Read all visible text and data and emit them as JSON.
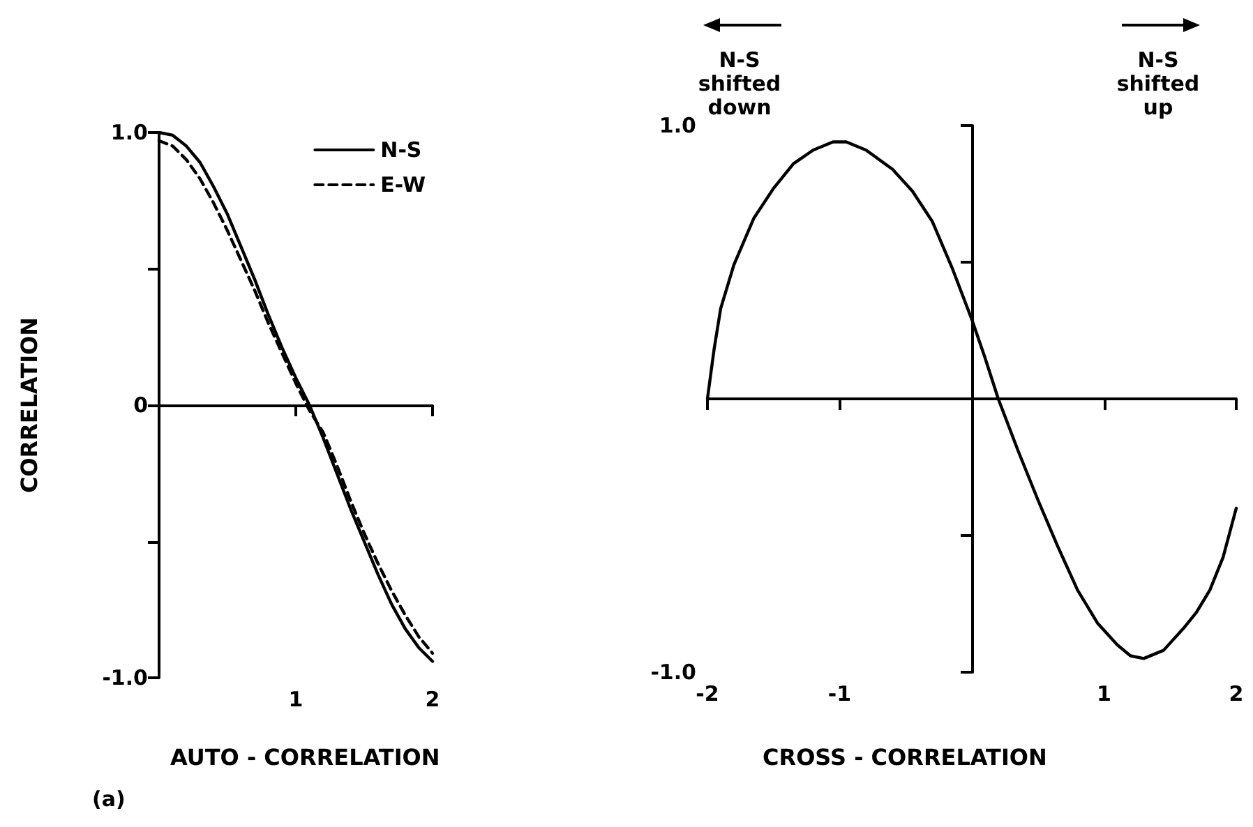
{
  "chart_data": [
    {
      "type": "line",
      "xlabel": "AUTO - CORRELATION",
      "ylabel": "CORRELATION",
      "annotations": [
        "(a)"
      ],
      "legend": "top right",
      "marker": "none",
      "xlim": [
        0,
        2
      ],
      "xticks": [
        1,
        2
      ],
      "ylim": [
        -1,
        1
      ],
      "yticks": [
        {
          "value": -1,
          "label": "-1.0"
        },
        {
          "value": -0.5,
          "label": null
        },
        0,
        {
          "value": 0.5,
          "label": null
        },
        {
          "value": 1,
          "label": "1.0"
        }
      ],
      "x": [
        0,
        0.1,
        0.2,
        0.3,
        0.4,
        0.5,
        0.6,
        0.7,
        0.8,
        0.9,
        1.0,
        1.1,
        1.2,
        1.3,
        1.4,
        1.5,
        1.6,
        1.7,
        1.8,
        1.9,
        2.0
      ],
      "series": [
        {
          "name": "N-S",
          "color": "#000000",
          "line_style": "solid",
          "values": [
            1.0,
            0.99,
            0.95,
            0.89,
            0.8,
            0.7,
            0.58,
            0.46,
            0.33,
            0.21,
            0.1,
            0.0,
            -0.12,
            -0.25,
            -0.38,
            -0.5,
            -0.62,
            -0.73,
            -0.82,
            -0.89,
            -0.94
          ]
        },
        {
          "name": "E-W",
          "color": "#000000",
          "line_style": "dashed",
          "values": [
            0.97,
            0.95,
            0.9,
            0.83,
            0.74,
            0.64,
            0.53,
            0.42,
            0.3,
            0.19,
            0.08,
            -0.02,
            -0.1,
            -0.22,
            -0.35,
            -0.47,
            -0.58,
            -0.68,
            -0.77,
            -0.85,
            -0.91
          ]
        }
      ]
    },
    {
      "type": "line",
      "xlabel": "CROSS - CORRELATION",
      "annotations": [
        "N-S shifted down",
        "N-S shifted up"
      ],
      "legend": false,
      "marker": "none",
      "xlim": [
        -2,
        2
      ],
      "xticks": [
        -2,
        -1,
        1,
        2
      ],
      "ylim": [
        -1,
        1
      ],
      "yticks": [
        {
          "value": -1,
          "label": "-1.0"
        },
        {
          "value": -0.5,
          "label": null
        },
        {
          "value": 0.5,
          "label": null
        },
        {
          "value": 1,
          "label": "1.0"
        }
      ],
      "x": [
        -2,
        -1.95,
        -1.9,
        -1.8,
        -1.65,
        -1.5,
        -1.35,
        -1.2,
        -1.05,
        -0.95,
        -0.8,
        -0.6,
        -0.45,
        -0.3,
        -0.15,
        0,
        0.1,
        0.2,
        0.35,
        0.5,
        0.65,
        0.8,
        0.95,
        1.1,
        1.2,
        1.3,
        1.45,
        1.6,
        1.7,
        1.8,
        1.9,
        2.0
      ],
      "series": [
        {
          "color": "#000000",
          "line_style": "solid",
          "values": [
            0,
            0.18,
            0.33,
            0.49,
            0.66,
            0.77,
            0.86,
            0.91,
            0.94,
            0.94,
            0.91,
            0.84,
            0.76,
            0.65,
            0.48,
            0.29,
            0.15,
            0.0,
            -0.19,
            -0.37,
            -0.54,
            -0.7,
            -0.82,
            -0.9,
            -0.94,
            -0.95,
            -0.92,
            -0.84,
            -0.78,
            -0.7,
            -0.58,
            -0.4
          ]
        }
      ]
    }
  ]
}
